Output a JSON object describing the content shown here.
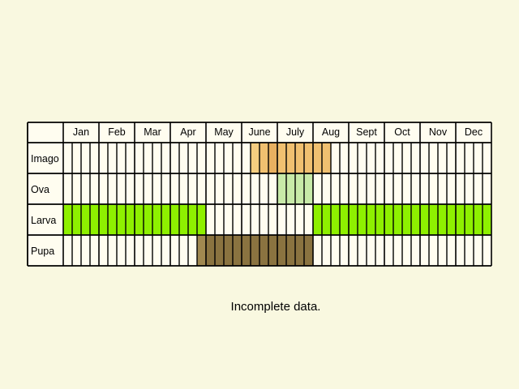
{
  "chart_data": {
    "type": "table",
    "title": "",
    "months": [
      "Jan",
      "Feb",
      "Mar",
      "Apr",
      "May",
      "June",
      "July",
      "Aug",
      "Sept",
      "Oct",
      "Nov",
      "Dec"
    ],
    "stages": [
      {
        "name": "Imago",
        "ranges": [
          {
            "from": 6.25,
            "to": 6.5,
            "color": "#f5cd80"
          },
          {
            "from": 6.5,
            "to": 6.75,
            "color": "#f0c070"
          },
          {
            "from": 6.75,
            "to": 7.0,
            "color": "#e8b060"
          },
          {
            "from": 7.0,
            "to": 8.5,
            "color": "#f0c070"
          }
        ]
      },
      {
        "name": "Ova",
        "ranges": [
          {
            "from": 7.0,
            "to": 8.0,
            "color": "#c8eaa8"
          }
        ]
      },
      {
        "name": "Larva",
        "ranges": [
          {
            "from": 1.0,
            "to": 5.0,
            "color": "#8ef000"
          },
          {
            "from": 8.0,
            "to": 13.0,
            "color": "#8ef000"
          }
        ]
      },
      {
        "name": "Pupa",
        "ranges": [
          {
            "from": 4.75,
            "to": 5.0,
            "color": "#a08850"
          },
          {
            "from": 5.0,
            "to": 8.0,
            "color": "#8a7340"
          }
        ]
      }
    ],
    "empty_cell_color": "#fffdf0",
    "grid_color": "#000000",
    "legend": "none"
  },
  "note": "Incomplete data."
}
